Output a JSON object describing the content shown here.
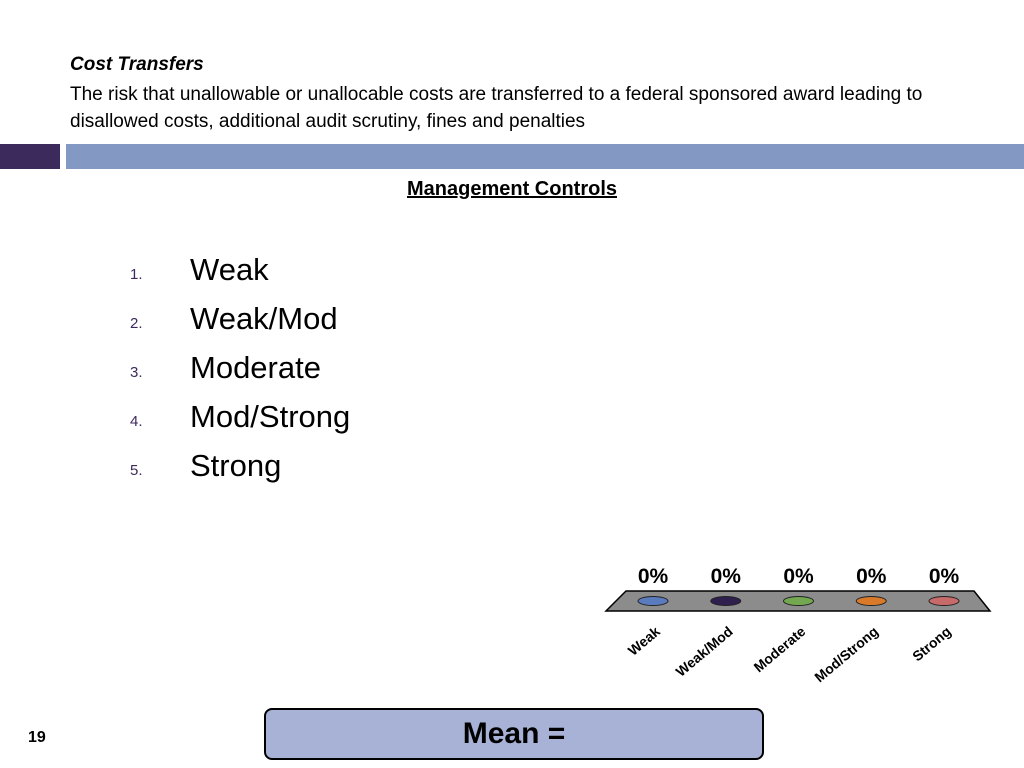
{
  "header": {
    "title": "Cost Transfers",
    "description": "The risk that unallowable or unallocable costs are transferred to a federal sponsored award leading to disallowed costs, additional audit scrutiny, fines and penalties"
  },
  "section_title": "Management Controls",
  "options": [
    {
      "number": "1.",
      "label": "Weak"
    },
    {
      "number": "2.",
      "label": "Weak/Mod"
    },
    {
      "number": "3.",
      "label": "Moderate"
    },
    {
      "number": "4.",
      "label": "Mod/Strong"
    },
    {
      "number": "5.",
      "label": "Strong"
    }
  ],
  "colors": {
    "accent_dark": "#3c2a5c",
    "accent_light": "#8498c4",
    "platform": "#8c8c8c",
    "mean_box": "#a7b2d6"
  },
  "chart_data": {
    "type": "bar",
    "categories": [
      "Weak",
      "Weak/Mod",
      "Moderate",
      "Mod/Strong",
      "Strong"
    ],
    "values": [
      0,
      0,
      0,
      0,
      0
    ],
    "data_labels": [
      "0%",
      "0%",
      "0%",
      "0%",
      "0%"
    ],
    "colors": [
      "#5b7bbf",
      "#2e1f4f",
      "#73a850",
      "#d97a2a",
      "#c96a6a"
    ],
    "ylim": [
      0,
      100
    ],
    "grid": false
  },
  "mean_label": "Mean =",
  "page_number": "19"
}
